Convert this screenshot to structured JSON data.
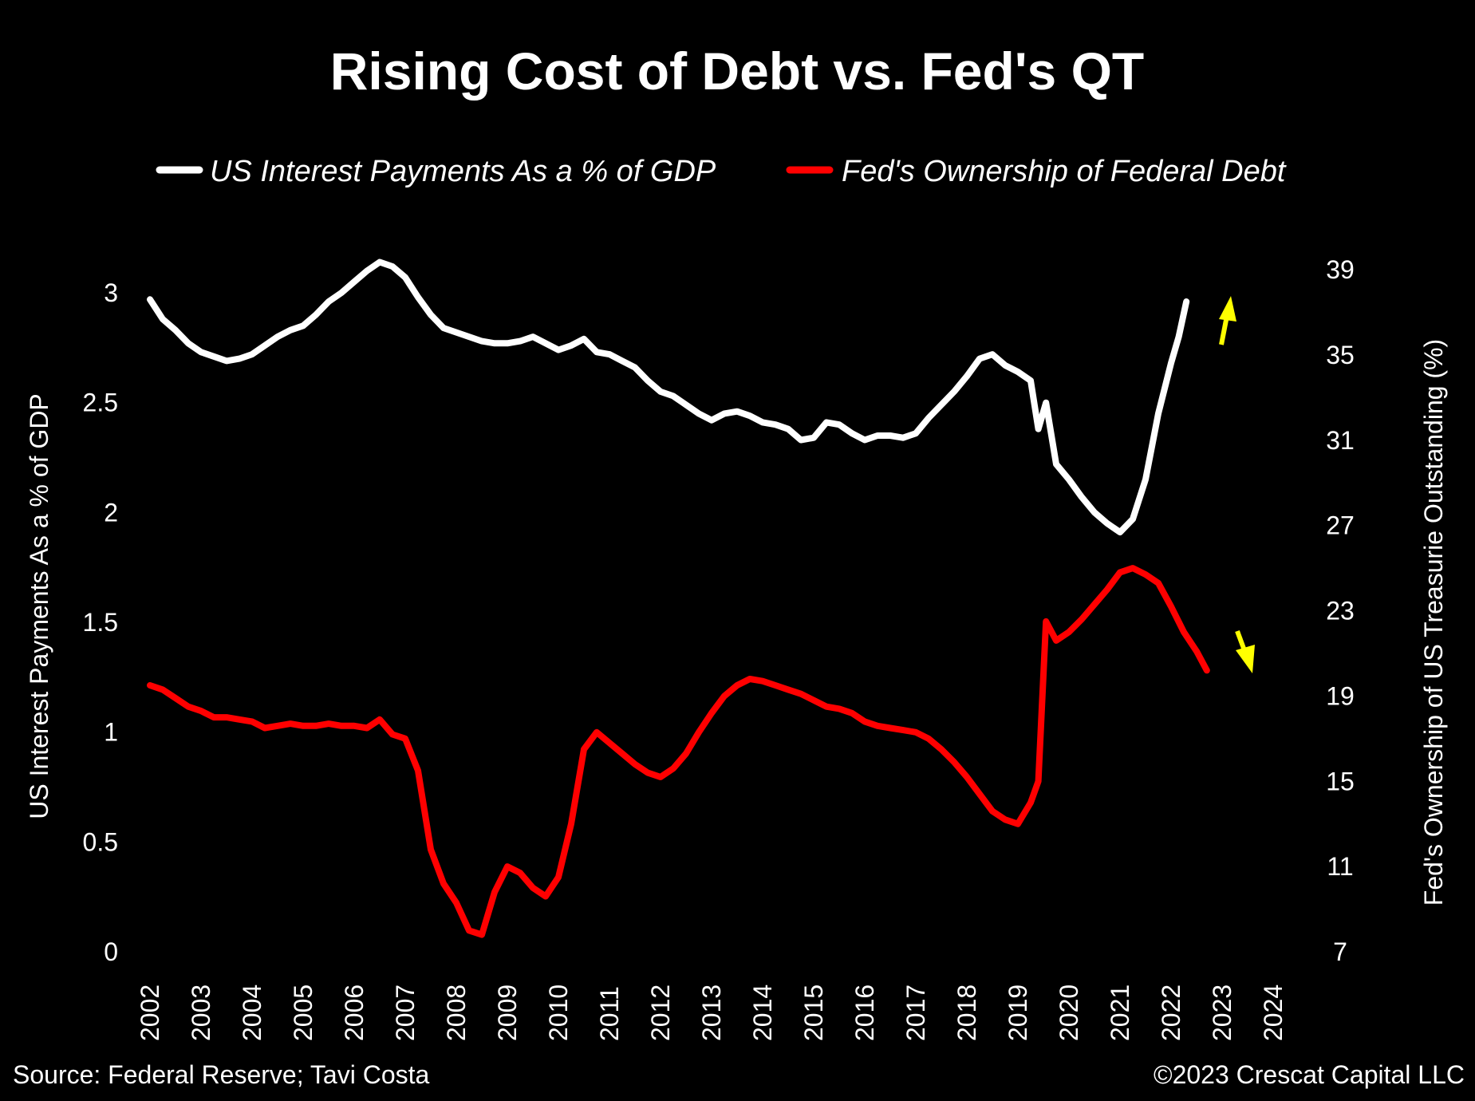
{
  "chart_data": {
    "type": "line",
    "title": "Rising Cost of Debt vs. Fed's QT",
    "legend_position": "top",
    "grid": false,
    "colors": {
      "background": "#000000",
      "text": "#ffffff",
      "arrow": "#ffff00"
    },
    "x_axis": {
      "ticks": [
        "2002",
        "2003",
        "2004",
        "2005",
        "2006",
        "2007",
        "2008",
        "2009",
        "2010",
        "2011",
        "2012",
        "2013",
        "2014",
        "2015",
        "2016",
        "2017",
        "2018",
        "2019",
        "2020",
        "2021",
        "2022",
        "2023",
        "2024"
      ],
      "range": [
        2002,
        2024
      ]
    },
    "y_left": {
      "label": "US Interest Payments As a % of GDP",
      "ticks": [
        "0",
        "0.5",
        "1",
        "1.5",
        "2",
        "2.5",
        "3"
      ],
      "range": [
        0,
        3
      ]
    },
    "y_right": {
      "label": "Fed's Ownership of US Treasurie  Outstanding (%)",
      "ticks": [
        "7",
        "11",
        "15",
        "19",
        "23",
        "27",
        "31",
        "35",
        "39"
      ],
      "range": [
        7,
        39
      ]
    },
    "series": [
      {
        "name": "US Interest Payments As a % of GDP",
        "axis": "left",
        "color": "#ffffff",
        "points": [
          [
            2002.0,
            2.97
          ],
          [
            2002.25,
            2.88
          ],
          [
            2002.5,
            2.83
          ],
          [
            2002.75,
            2.77
          ],
          [
            2003.0,
            2.73
          ],
          [
            2003.25,
            2.71
          ],
          [
            2003.5,
            2.69
          ],
          [
            2003.75,
            2.7
          ],
          [
            2004.0,
            2.72
          ],
          [
            2004.25,
            2.76
          ],
          [
            2004.5,
            2.8
          ],
          [
            2004.75,
            2.83
          ],
          [
            2005.0,
            2.85
          ],
          [
            2005.25,
            2.9
          ],
          [
            2005.5,
            2.96
          ],
          [
            2005.75,
            3.0
          ],
          [
            2006.0,
            3.05
          ],
          [
            2006.25,
            3.1
          ],
          [
            2006.5,
            3.14
          ],
          [
            2006.75,
            3.12
          ],
          [
            2007.0,
            3.07
          ],
          [
            2007.25,
            2.98
          ],
          [
            2007.5,
            2.9
          ],
          [
            2007.75,
            2.84
          ],
          [
            2008.0,
            2.82
          ],
          [
            2008.25,
            2.8
          ],
          [
            2008.5,
            2.78
          ],
          [
            2008.75,
            2.77
          ],
          [
            2009.0,
            2.77
          ],
          [
            2009.25,
            2.78
          ],
          [
            2009.5,
            2.8
          ],
          [
            2009.75,
            2.77
          ],
          [
            2010.0,
            2.74
          ],
          [
            2010.25,
            2.76
          ],
          [
            2010.5,
            2.79
          ],
          [
            2010.75,
            2.73
          ],
          [
            2011.0,
            2.72
          ],
          [
            2011.25,
            2.69
          ],
          [
            2011.5,
            2.66
          ],
          [
            2011.75,
            2.6
          ],
          [
            2012.0,
            2.55
          ],
          [
            2012.25,
            2.53
          ],
          [
            2012.5,
            2.49
          ],
          [
            2012.75,
            2.45
          ],
          [
            2013.0,
            2.42
          ],
          [
            2013.25,
            2.45
          ],
          [
            2013.5,
            2.46
          ],
          [
            2013.75,
            2.44
          ],
          [
            2014.0,
            2.41
          ],
          [
            2014.25,
            2.4
          ],
          [
            2014.5,
            2.38
          ],
          [
            2014.75,
            2.33
          ],
          [
            2015.0,
            2.34
          ],
          [
            2015.25,
            2.41
          ],
          [
            2015.5,
            2.4
          ],
          [
            2015.75,
            2.36
          ],
          [
            2016.0,
            2.33
          ],
          [
            2016.25,
            2.35
          ],
          [
            2016.5,
            2.35
          ],
          [
            2016.75,
            2.34
          ],
          [
            2017.0,
            2.36
          ],
          [
            2017.25,
            2.43
          ],
          [
            2017.5,
            2.49
          ],
          [
            2017.75,
            2.55
          ],
          [
            2018.0,
            2.62
          ],
          [
            2018.25,
            2.7
          ],
          [
            2018.5,
            2.72
          ],
          [
            2018.75,
            2.67
          ],
          [
            2019.0,
            2.64
          ],
          [
            2019.25,
            2.6
          ],
          [
            2019.4,
            2.38
          ],
          [
            2019.55,
            2.5
          ],
          [
            2019.75,
            2.22
          ],
          [
            2020.0,
            2.15
          ],
          [
            2020.25,
            2.07
          ],
          [
            2020.5,
            2.0
          ],
          [
            2020.75,
            1.95
          ],
          [
            2021.0,
            1.91
          ],
          [
            2021.25,
            1.97
          ],
          [
            2021.5,
            2.15
          ],
          [
            2021.75,
            2.45
          ],
          [
            2022.0,
            2.68
          ],
          [
            2022.15,
            2.8
          ],
          [
            2022.3,
            2.96
          ]
        ]
      },
      {
        "name": "Fed's Ownership of Federal Debt",
        "axis": "right",
        "color": "#ff0000",
        "points": [
          [
            2002.0,
            19.5
          ],
          [
            2002.25,
            19.3
          ],
          [
            2002.5,
            18.9
          ],
          [
            2002.75,
            18.5
          ],
          [
            2003.0,
            18.3
          ],
          [
            2003.25,
            18.0
          ],
          [
            2003.5,
            18.0
          ],
          [
            2003.75,
            17.9
          ],
          [
            2004.0,
            17.8
          ],
          [
            2004.25,
            17.5
          ],
          [
            2004.5,
            17.6
          ],
          [
            2004.75,
            17.7
          ],
          [
            2005.0,
            17.6
          ],
          [
            2005.25,
            17.6
          ],
          [
            2005.5,
            17.7
          ],
          [
            2005.75,
            17.6
          ],
          [
            2006.0,
            17.6
          ],
          [
            2006.25,
            17.5
          ],
          [
            2006.5,
            17.9
          ],
          [
            2006.75,
            17.2
          ],
          [
            2007.0,
            17.0
          ],
          [
            2007.25,
            15.5
          ],
          [
            2007.5,
            11.8
          ],
          [
            2007.75,
            10.2
          ],
          [
            2008.0,
            9.3
          ],
          [
            2008.25,
            8.0
          ],
          [
            2008.5,
            7.8
          ],
          [
            2008.75,
            9.8
          ],
          [
            2009.0,
            11.0
          ],
          [
            2009.25,
            10.7
          ],
          [
            2009.5,
            10.0
          ],
          [
            2009.75,
            9.6
          ],
          [
            2010.0,
            10.5
          ],
          [
            2010.25,
            13.0
          ],
          [
            2010.5,
            16.5
          ],
          [
            2010.75,
            17.3
          ],
          [
            2011.0,
            16.8
          ],
          [
            2011.25,
            16.3
          ],
          [
            2011.5,
            15.8
          ],
          [
            2011.75,
            15.4
          ],
          [
            2012.0,
            15.2
          ],
          [
            2012.25,
            15.6
          ],
          [
            2012.5,
            16.3
          ],
          [
            2012.75,
            17.3
          ],
          [
            2013.0,
            18.2
          ],
          [
            2013.25,
            19.0
          ],
          [
            2013.5,
            19.5
          ],
          [
            2013.75,
            19.8
          ],
          [
            2014.0,
            19.7
          ],
          [
            2014.25,
            19.5
          ],
          [
            2014.5,
            19.3
          ],
          [
            2014.75,
            19.1
          ],
          [
            2015.0,
            18.8
          ],
          [
            2015.25,
            18.5
          ],
          [
            2015.5,
            18.4
          ],
          [
            2015.75,
            18.2
          ],
          [
            2016.0,
            17.8
          ],
          [
            2016.25,
            17.6
          ],
          [
            2016.5,
            17.5
          ],
          [
            2016.75,
            17.4
          ],
          [
            2017.0,
            17.3
          ],
          [
            2017.25,
            17.0
          ],
          [
            2017.5,
            16.5
          ],
          [
            2017.75,
            15.9
          ],
          [
            2018.0,
            15.2
          ],
          [
            2018.25,
            14.4
          ],
          [
            2018.5,
            13.6
          ],
          [
            2018.75,
            13.2
          ],
          [
            2019.0,
            13.0
          ],
          [
            2019.25,
            14.0
          ],
          [
            2019.4,
            15.0
          ],
          [
            2019.55,
            22.5
          ],
          [
            2019.75,
            21.6
          ],
          [
            2020.0,
            22.0
          ],
          [
            2020.25,
            22.6
          ],
          [
            2020.5,
            23.3
          ],
          [
            2020.75,
            24.0
          ],
          [
            2021.0,
            24.8
          ],
          [
            2021.25,
            25.0
          ],
          [
            2021.5,
            24.7
          ],
          [
            2021.75,
            24.3
          ],
          [
            2022.0,
            23.2
          ],
          [
            2022.25,
            22.0
          ],
          [
            2022.5,
            21.1
          ],
          [
            2022.7,
            20.2
          ]
        ]
      }
    ],
    "annotations": [
      {
        "type": "arrow",
        "direction": "up",
        "color": "#ffff00",
        "near": "white series end"
      },
      {
        "type": "arrow",
        "direction": "down",
        "color": "#ffff00",
        "near": "red series end"
      }
    ]
  },
  "footer": {
    "source": "Source: Federal Reserve; Tavi Costa",
    "copyright": "©2023 Crescat Capital LLC"
  }
}
